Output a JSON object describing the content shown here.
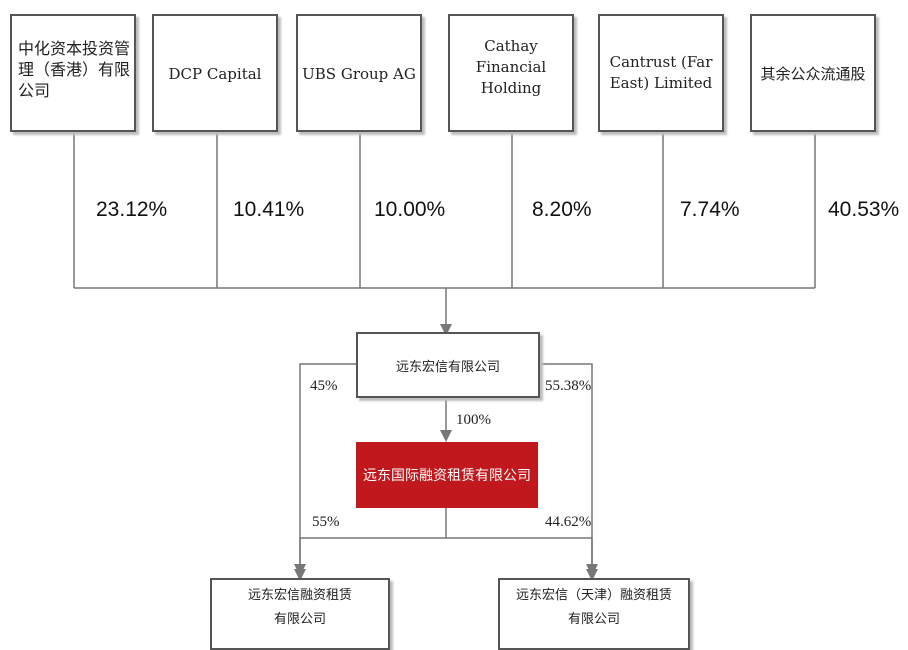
{
  "shareholders": [
    {
      "name": "中化资本投资管\n理（香港）有限\n公司",
      "pct": "23.12%"
    },
    {
      "name": "DCP Capital",
      "pct": "10.41%"
    },
    {
      "name": "UBS Group AG",
      "pct": "10.00%"
    },
    {
      "name": "Cathay\nFinancial\nHolding",
      "pct": "8.20%"
    },
    {
      "name": "Cantrust (Far\nEast) Limited",
      "pct": "7.74%"
    },
    {
      "name": "其余公众流通股",
      "pct": "40.53%"
    }
  ],
  "parent": {
    "name": "远东宏信有限公司"
  },
  "core": {
    "name": "远东国际融资租赁有限公司"
  },
  "subsidiaries": [
    {
      "name": "远东宏信融资租赁\n有限公司"
    },
    {
      "name": "远东宏信（天津）融资租赁\n有限公司"
    }
  ],
  "edges": {
    "parent_to_left": "45%",
    "parent_to_right": "55.38%",
    "parent_to_core": "100%",
    "core_to_left": "55%",
    "core_to_right": "44.62%"
  },
  "colors": {
    "core_fill": "#c0181c",
    "line": "#777777"
  }
}
